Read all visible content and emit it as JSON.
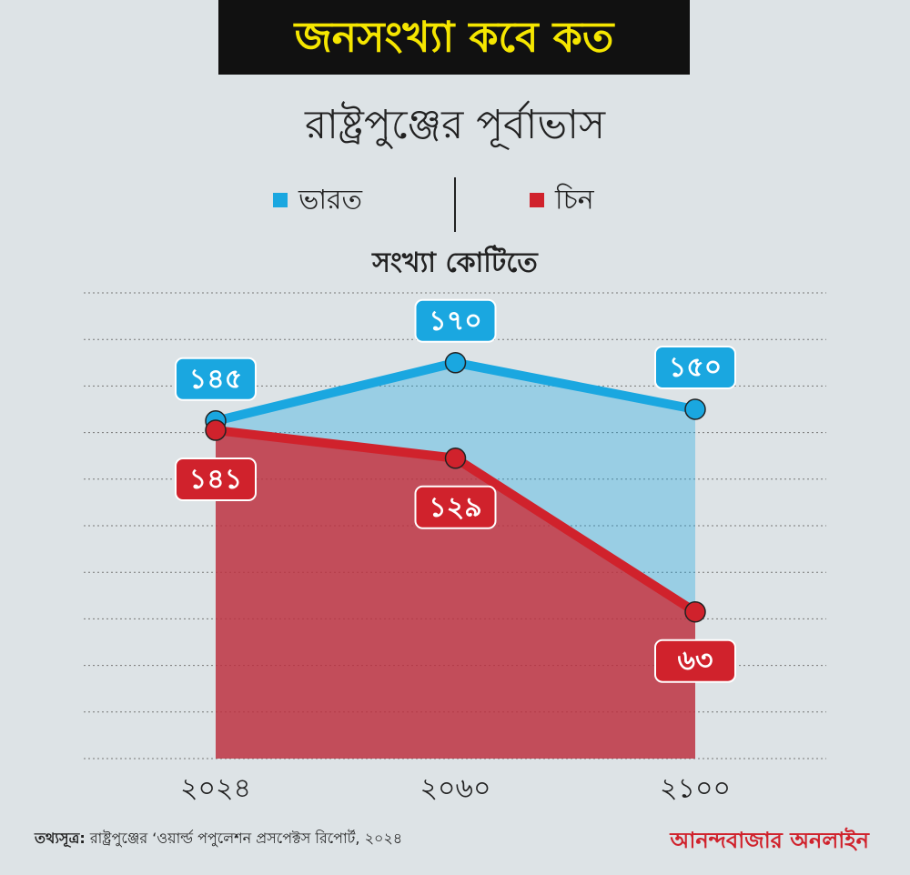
{
  "chart_data": {
    "type": "line",
    "title": "জনসংখ্যা কবে কত",
    "subtitle": "রাষ্ট্রপুঞ্জের পূর্বাভাস",
    "y_label": "সংখ্যা কোটিতে",
    "categories": [
      "২০২৪",
      "২০৬০",
      "২১০০"
    ],
    "series": [
      {
        "name": "ভারত",
        "color": "#1aa7e0",
        "values": [
          145,
          170,
          150
        ],
        "value_labels": [
          "১৪৫",
          "১৭০",
          "১৫০"
        ]
      },
      {
        "name": "চিন",
        "color": "#d0222c",
        "values": [
          141,
          129,
          63
        ],
        "value_labels": [
          "১৪১",
          "১২৯",
          "৬৩"
        ]
      }
    ],
    "ylim": [
      0,
      200
    ],
    "yticks": [
      0,
      20,
      40,
      60,
      80,
      100,
      120,
      140,
      160,
      180,
      200
    ],
    "grid": true,
    "source_label": "তথ্যসূত্র:",
    "source": "রাষ্ট্রপুঞ্জের ‘ওয়ার্ল্ড পপুলেশন প্রসপেক্টস রিপোর্ট, ২০২৪",
    "brand": "আনন্দবাজার অনলাইন"
  }
}
